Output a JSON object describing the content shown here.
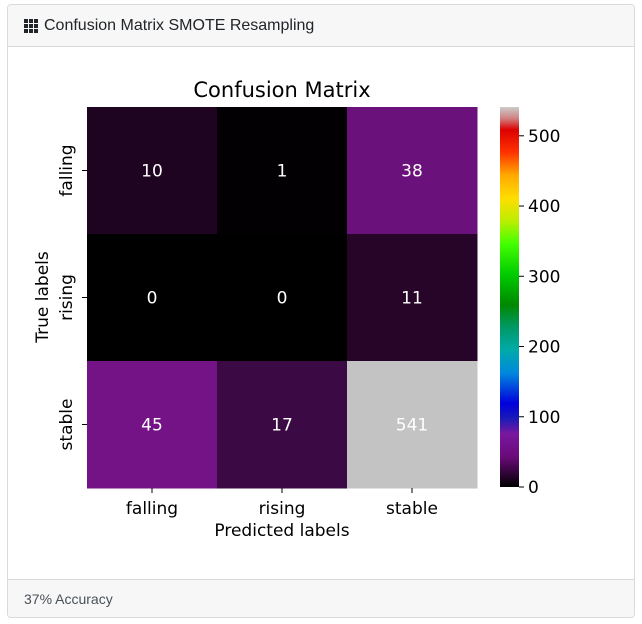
{
  "card": {
    "title": "Confusion Matrix SMOTE Resampling",
    "icon": "grid-icon",
    "footer": "37% Accuracy"
  },
  "chart_data": {
    "type": "heatmap",
    "title": "Confusion Matrix",
    "xlabel": "Predicted labels",
    "ylabel": "True labels",
    "x_categories": [
      "falling",
      "rising",
      "stable"
    ],
    "y_categories": [
      "falling",
      "rising",
      "stable"
    ],
    "values": [
      [
        10,
        1,
        38
      ],
      [
        0,
        0,
        11
      ],
      [
        45,
        17,
        541
      ]
    ],
    "colormap": "nipy_spectral",
    "vmin": 0,
    "vmax": 541,
    "colorbar_ticks": [
      0,
      100,
      200,
      300,
      400,
      500
    ],
    "cell_colors": [
      [
        "#1f0421",
        "#020002",
        "#6b117b"
      ],
      [
        "#000000",
        "#000000",
        "#260529"
      ],
      [
        "#741386",
        "#3b0943",
        "#c3c3c3"
      ]
    ],
    "cell_text_color": "#ffffff",
    "colorbar_stops": [
      {
        "v": 0.0,
        "c": "#000000"
      },
      {
        "v": 0.08,
        "c": "#6a0a7a"
      },
      {
        "v": 0.14,
        "c": "#7a179f"
      },
      {
        "v": 0.18,
        "c": "#1b1bb8"
      },
      {
        "v": 0.22,
        "c": "#0000dd"
      },
      {
        "v": 0.3,
        "c": "#0088dd"
      },
      {
        "v": 0.36,
        "c": "#00aaaa"
      },
      {
        "v": 0.42,
        "c": "#009966"
      },
      {
        "v": 0.48,
        "c": "#008800"
      },
      {
        "v": 0.56,
        "c": "#00cc00"
      },
      {
        "v": 0.64,
        "c": "#44ff00"
      },
      {
        "v": 0.7,
        "c": "#bbee00"
      },
      {
        "v": 0.76,
        "c": "#ffdd00"
      },
      {
        "v": 0.82,
        "c": "#ffaa00"
      },
      {
        "v": 0.88,
        "c": "#ff3300"
      },
      {
        "v": 0.94,
        "c": "#dd0000"
      },
      {
        "v": 0.97,
        "c": "#d08080"
      },
      {
        "v": 1.0,
        "c": "#cccccc"
      }
    ]
  }
}
